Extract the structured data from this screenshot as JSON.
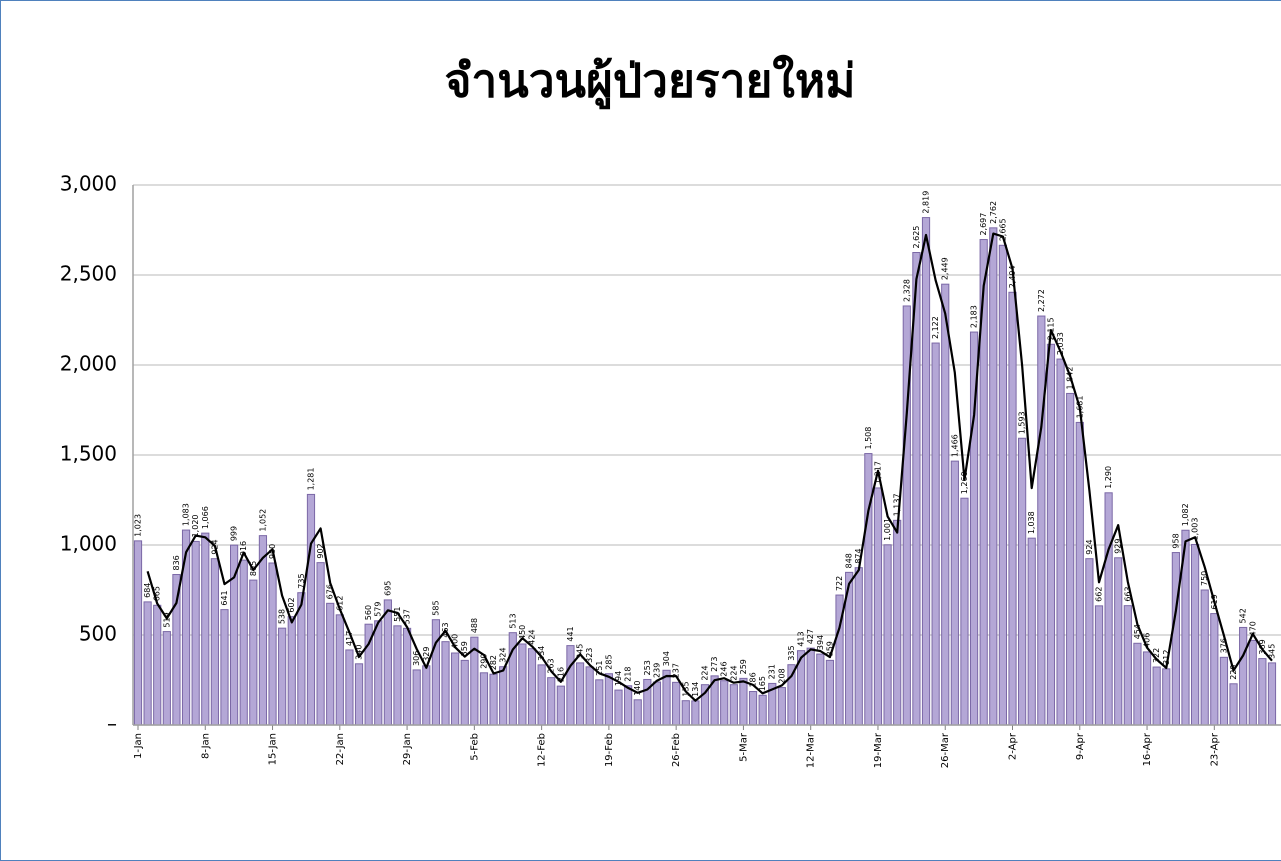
{
  "chart_data": {
    "type": "bar",
    "title": "จำนวนผู้ป่วยรายใหม่",
    "categories": [
      "1-Jan",
      null,
      null,
      null,
      null,
      null,
      null,
      "8-Jan",
      null,
      null,
      null,
      null,
      null,
      null,
      "15-Jan",
      null,
      null,
      null,
      null,
      null,
      null,
      "22-Jan",
      null,
      null,
      null,
      null,
      null,
      null,
      "29-Jan",
      null,
      null,
      null,
      null,
      null,
      null,
      "5-Feb",
      null,
      null,
      null,
      null,
      null,
      null,
      "12-Feb",
      null,
      null,
      null,
      null,
      null,
      null,
      "19-Feb",
      null,
      null,
      null,
      null,
      null,
      null,
      "26-Feb",
      null,
      null,
      null,
      null,
      null,
      null,
      "5-Mar",
      null,
      null,
      null,
      null,
      null,
      null,
      "12-Mar",
      null,
      null,
      null,
      null,
      null,
      null,
      "19-Mar",
      null,
      null,
      null,
      null,
      null,
      null,
      "26-Mar",
      null,
      null,
      null,
      null,
      null,
      null,
      "2-Apr",
      null,
      null,
      null,
      null,
      null,
      null,
      "9-Apr",
      null,
      null,
      null,
      null,
      null,
      null,
      "16-Apr",
      null,
      null,
      null,
      null,
      null,
      null,
      "23-Apr",
      null,
      null,
      null,
      null,
      null,
      null
    ],
    "series": [
      {
        "type": "bar",
        "color": "#b4a7d6",
        "values": [
          1023,
          684,
          665,
          519,
          836,
          1083,
          1020,
          1066,
          924,
          641,
          999,
          916,
          805,
          1052,
          900,
          538,
          602,
          735,
          1281,
          902,
          676,
          612,
          417,
          340,
          560,
          579,
          695,
          551,
          537,
          306,
          329,
          585,
          463,
          400,
          359,
          488,
          290,
          282,
          324,
          513,
          450,
          424,
          334,
          263,
          216,
          441,
          345,
          323,
          251,
          285,
          194,
          218,
          140,
          253,
          239,
          304,
          237,
          135,
          134,
          224,
          273,
          246,
          224,
          259,
          186,
          165,
          231,
          208,
          335,
          413,
          427,
          394,
          359,
          722,
          848,
          874,
          1508,
          1317,
          1001,
          1137,
          2328,
          2625,
          2819,
          2122,
          2449,
          1466,
          1260,
          2183,
          2697,
          2762,
          2665,
          2404,
          1593,
          1038,
          2272,
          2115,
          2033,
          1842,
          1681,
          924,
          662,
          1290,
          929,
          663,
          454,
          406,
          322,
          312,
          958,
          1082,
          1003,
          750,
          619,
          376,
          229,
          542,
          470,
          369,
          345
        ],
        "value_labels": [
          "1,023",
          "684",
          "665",
          "519",
          "836",
          "1,083",
          "1,020",
          "1,066",
          "924",
          "641",
          "999",
          "916",
          "805",
          "1,052",
          "900",
          "538",
          "602",
          "735",
          "1,281",
          "902",
          "676",
          "612",
          "417",
          "340",
          "560",
          "579",
          "695",
          "551",
          "537",
          "306",
          "329",
          "585",
          "463",
          "400",
          "359",
          "488",
          "290",
          "282",
          "324",
          "513",
          "450",
          "424",
          "334",
          "263",
          "216",
          "441",
          "345",
          "323",
          "251",
          "285",
          "194",
          "218",
          "140",
          "253",
          "239",
          "304",
          "237",
          "135",
          "134",
          "224",
          "273",
          "246",
          "224",
          "259",
          "186",
          "165",
          "231",
          "208",
          "335",
          "413",
          "427",
          "394",
          "359",
          "722",
          "848",
          "874",
          "1,508",
          "1,317",
          "1,001",
          "1,137",
          "2,328",
          "2,625",
          "2,819",
          "2,122",
          "2,449",
          "1,466",
          "1,260",
          "2,183",
          "2,697",
          "2,762",
          "2,665",
          "2,404",
          "1,593",
          "1,038",
          "2,272",
          "2,115",
          "2,033",
          "1,842",
          "1,681",
          "924",
          "662",
          "1,290",
          "929",
          "663",
          "454",
          "406",
          "322",
          "312",
          "958",
          "1,082",
          "1,003",
          "750",
          "619",
          "376",
          "229",
          "542",
          "470",
          "369",
          "345"
        ]
      },
      {
        "type": "line",
        "color": "#000000",
        "values": [
          null,
          854,
          675,
          592,
          678,
          960,
          1052,
          1043,
          995,
          783,
          820,
          958,
          861,
          929,
          976,
          719,
          570,
          669,
          1008,
          1092,
          789,
          644,
          515,
          379,
          450,
          570,
          637,
          623,
          544,
          422,
          318,
          457,
          524,
          432,
          380,
          424,
          389,
          286,
          303,
          419,
          482,
          437,
          379,
          299,
          240,
          329,
          393,
          334,
          287,
          268,
          240,
          206,
          179,
          197,
          246,
          272,
          271,
          186,
          135,
          179,
          249,
          260,
          235,
          242,
          223,
          176,
          198,
          220,
          272,
          374,
          420,
          411,
          377,
          541,
          785,
          861,
          1191,
          1413,
          1159,
          1069,
          1733,
          2477,
          2722,
          2471,
          2286,
          1958,
          1363,
          1722,
          2440,
          2730,
          2714,
          2535,
          1999,
          1316,
          1655,
          2194,
          2074,
          1938,
          1762,
          1303,
          793,
          976,
          1110,
          796,
          559,
          430,
          364,
          317,
          635,
          1020,
          1043,
          877,
          685,
          498,
          303,
          386,
          506,
          420,
          357
        ]
      }
    ],
    "ylim": [
      0,
      3000
    ],
    "yticks": [
      {
        "value": 0,
        "label": "–"
      },
      500,
      {
        "value": 1000,
        "label": "1,000"
      },
      {
        "value": 1500,
        "label": "1,500"
      },
      {
        "value": 2000,
        "label": "2,000"
      },
      {
        "value": 2500,
        "label": "2,500"
      },
      {
        "value": 3000,
        "label": "3,000"
      }
    ],
    "grid": true
  }
}
